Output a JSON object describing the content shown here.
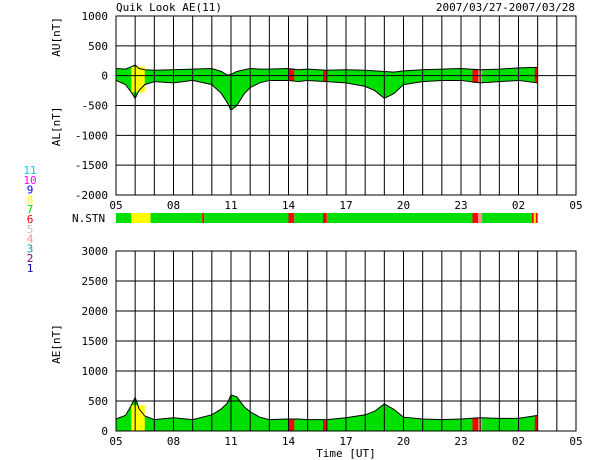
{
  "title": "Quik Look AE(11)",
  "date_range": "2007/03/27-2007/03/28",
  "station_legend": [
    {
      "label": "11",
      "color": "#00c8ff"
    },
    {
      "label": "10",
      "color": "#ff00ff"
    },
    {
      "label": "9",
      "color": "#0000ff"
    },
    {
      "label": "8",
      "color": "#ffff00"
    },
    {
      "label": "7",
      "color": "#00e000"
    },
    {
      "label": "6",
      "color": "#ff0000"
    },
    {
      "label": "5",
      "color": "#c0c0c0"
    },
    {
      "label": "4",
      "color": "#ff9090"
    },
    {
      "label": "3",
      "color": "#00a0a0"
    },
    {
      "label": "2",
      "color": "#800080"
    },
    {
      "label": "1",
      "color": "#0000a0"
    }
  ],
  "nstn_label": "N.STN",
  "nstn_bar": [
    {
      "start": 5.0,
      "end": 5.8,
      "color": "#00e000"
    },
    {
      "start": 5.8,
      "end": 6.8,
      "color": "#ffff00"
    },
    {
      "start": 6.8,
      "end": 9.5,
      "color": "#00e000"
    },
    {
      "start": 9.5,
      "end": 9.6,
      "color": "#ff0000"
    },
    {
      "start": 9.6,
      "end": 14.0,
      "color": "#00e000"
    },
    {
      "start": 14.0,
      "end": 14.3,
      "color": "#ff0000"
    },
    {
      "start": 14.3,
      "end": 15.8,
      "color": "#00e000"
    },
    {
      "start": 15.8,
      "end": 16.0,
      "color": "#ff0000"
    },
    {
      "start": 16.0,
      "end": 23.6,
      "color": "#00e000"
    },
    {
      "start": 23.6,
      "end": 23.9,
      "color": "#ff0000"
    },
    {
      "start": 23.9,
      "end": 24.1,
      "color": "#ff9090"
    },
    {
      "start": 24.1,
      "end": 26.7,
      "color": "#00e000"
    },
    {
      "start": 26.7,
      "end": 26.8,
      "color": "#ff0000"
    },
    {
      "start": 26.8,
      "end": 26.9,
      "color": "#ffff00"
    },
    {
      "start": 26.9,
      "end": 27.0,
      "color": "#ff0000"
    }
  ],
  "chart_data": [
    {
      "type": "area",
      "ylabel_top": "AU[nT]",
      "ylabel_bottom": "AL[nT]",
      "xlim": [
        5,
        29
      ],
      "ylim": [
        -2000,
        1000
      ],
      "yticks": [
        1000,
        500,
        0,
        -500,
        -1000,
        -1500,
        -2000
      ],
      "xtick_labels": [
        "05",
        "08",
        "11",
        "14",
        "17",
        "20",
        "23",
        "02",
        "05"
      ],
      "grid": true,
      "x": [
        5.0,
        5.5,
        5.8,
        6.0,
        6.2,
        6.5,
        7.0,
        8.0,
        9.0,
        10.0,
        10.5,
        10.8,
        11.0,
        11.3,
        11.7,
        12.0,
        12.5,
        13.0,
        14.0,
        14.5,
        15.0,
        16.0,
        17.0,
        18.0,
        18.5,
        19.0,
        19.5,
        20.0,
        21.0,
        22.0,
        23.0,
        23.5,
        24.0,
        25.0,
        26.0,
        27.0
      ],
      "au": [
        120,
        110,
        150,
        180,
        120,
        100,
        90,
        100,
        110,
        120,
        70,
        10,
        20,
        70,
        100,
        120,
        110,
        110,
        120,
        100,
        110,
        90,
        100,
        90,
        80,
        70,
        60,
        80,
        100,
        110,
        120,
        110,
        100,
        110,
        130,
        140
      ],
      "al": [
        -80,
        -150,
        -280,
        -380,
        -250,
        -150,
        -100,
        -120,
        -80,
        -150,
        -300,
        -450,
        -580,
        -500,
        -300,
        -200,
        -120,
        -80,
        -80,
        -100,
        -80,
        -100,
        -120,
        -180,
        -250,
        -380,
        -300,
        -150,
        -100,
        -80,
        -80,
        -100,
        -120,
        -100,
        -80,
        -120
      ],
      "status_overlays": [
        {
          "start": 5.8,
          "end": 6.5,
          "color": "#ffff00"
        },
        {
          "start": 14.0,
          "end": 14.3,
          "color": "#ff0000"
        },
        {
          "start": 15.8,
          "end": 16.0,
          "color": "#ff0000"
        },
        {
          "start": 23.6,
          "end": 23.9,
          "color": "#ff0000"
        },
        {
          "start": 23.9,
          "end": 24.1,
          "color": "#ff9090"
        },
        {
          "start": 26.85,
          "end": 27.0,
          "color": "#ff0000"
        }
      ]
    },
    {
      "type": "area",
      "ylabel": "AE[nT]",
      "xlabel": "Time [UT]",
      "xlim": [
        5,
        29
      ],
      "ylim": [
        0,
        3000
      ],
      "yticks": [
        3000,
        2500,
        2000,
        1500,
        1000,
        500,
        0
      ],
      "xtick_labels": [
        "05",
        "08",
        "11",
        "14",
        "17",
        "20",
        "23",
        "02",
        "05"
      ],
      "grid": true,
      "x": [
        5.0,
        5.5,
        5.8,
        6.0,
        6.2,
        6.5,
        7.0,
        8.0,
        9.0,
        10.0,
        10.5,
        10.8,
        11.0,
        11.3,
        11.7,
        12.0,
        12.5,
        13.0,
        14.0,
        14.5,
        15.0,
        16.0,
        17.0,
        18.0,
        18.5,
        19.0,
        19.5,
        20.0,
        21.0,
        22.0,
        23.0,
        23.5,
        24.0,
        25.0,
        26.0,
        27.0
      ],
      "ae": [
        200,
        260,
        430,
        560,
        370,
        250,
        190,
        220,
        190,
        270,
        370,
        460,
        600,
        570,
        400,
        320,
        230,
        190,
        200,
        200,
        190,
        190,
        220,
        270,
        330,
        450,
        360,
        230,
        200,
        190,
        200,
        210,
        220,
        210,
        210,
        260
      ],
      "status_overlays": [
        {
          "start": 5.8,
          "end": 6.5,
          "color": "#ffff00"
        },
        {
          "start": 14.0,
          "end": 14.3,
          "color": "#ff0000"
        },
        {
          "start": 15.8,
          "end": 16.0,
          "color": "#ff0000"
        },
        {
          "start": 23.6,
          "end": 23.9,
          "color": "#ff0000"
        },
        {
          "start": 23.9,
          "end": 24.1,
          "color": "#ff9090"
        },
        {
          "start": 26.85,
          "end": 27.0,
          "color": "#ff0000"
        }
      ]
    }
  ]
}
